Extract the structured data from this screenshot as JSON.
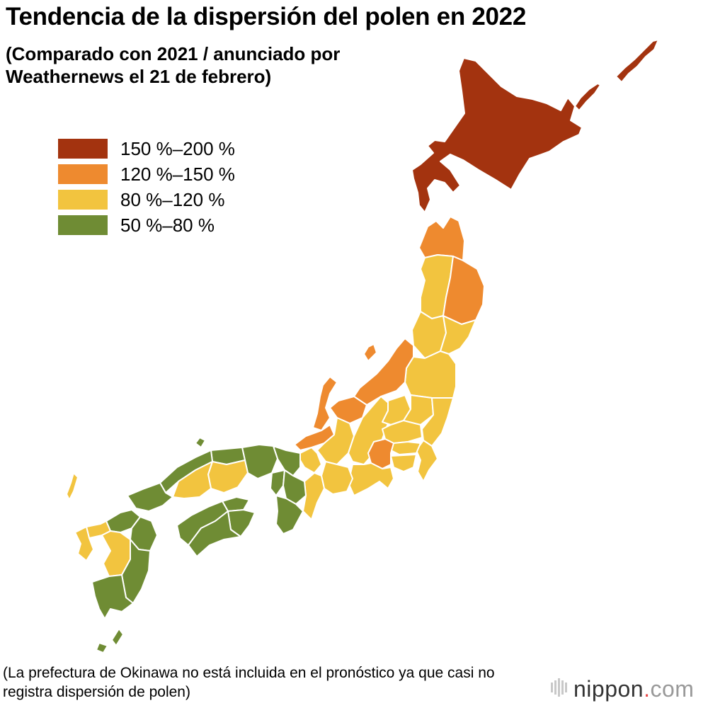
{
  "title": "Tendencia de la dispersión del polen en 2022",
  "subtitle": "(Comparado con 2021 / anunciado por Weathernews el 21 de febrero)",
  "legend": [
    {
      "label": "150 %–200 %",
      "color": "#a3330f"
    },
    {
      "label": "120 %–150 %",
      "color": "#ee8a2f"
    },
    {
      "label": "80 %–120 %",
      "color": "#f2c43f"
    },
    {
      "label": "50 %–80 %",
      "color": "#6f8c34"
    }
  ],
  "footnote": "(La prefectura de Okinawa no está incluida en el pronóstico ya que casi no registra dispersión de polen)",
  "logo": {
    "name": "nippon",
    "dot": ".",
    "suffix": "com"
  }
}
